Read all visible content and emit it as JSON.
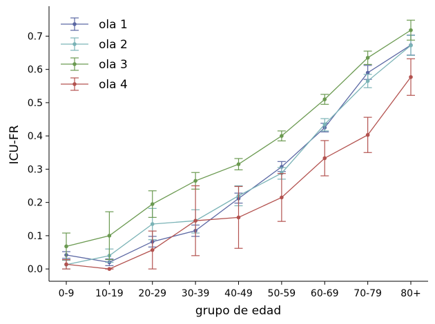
{
  "chart_data": {
    "type": "line",
    "xlabel": "grupo de edad",
    "ylabel": "ICU-FR",
    "categories": [
      "0-9",
      "10-19",
      "20-29",
      "30-39",
      "40-49",
      "50-59",
      "60-69",
      "70-79",
      "80+"
    ],
    "ylim": [
      -0.037,
      0.79
    ],
    "yticks": [
      "0.0",
      "0.1",
      "0.2",
      "0.3",
      "0.4",
      "0.5",
      "0.6",
      "0.7"
    ],
    "grid": false,
    "legend_position": "top-left",
    "series": [
      {
        "name": "ola 1",
        "color": "#5b67a3",
        "values": [
          0.042,
          0.02,
          0.082,
          0.115,
          0.212,
          0.307,
          0.425,
          0.59,
          0.673
        ],
        "err_low": [
          0.032,
          0.01,
          0.066,
          0.098,
          0.198,
          0.293,
          0.412,
          0.57,
          0.643
        ],
        "err_high": [
          0.052,
          0.03,
          0.098,
          0.132,
          0.228,
          0.323,
          0.438,
          0.612,
          0.703
        ]
      },
      {
        "name": "ola 2",
        "color": "#7ab3b6",
        "values": [
          0.013,
          0.04,
          0.135,
          0.145,
          0.22,
          0.288,
          0.435,
          0.565,
          0.672
        ],
        "err_low": [
          0.0,
          0.02,
          0.088,
          0.108,
          0.19,
          0.27,
          0.415,
          0.545,
          0.642
        ],
        "err_high": [
          0.026,
          0.06,
          0.182,
          0.178,
          0.25,
          0.305,
          0.452,
          0.585,
          0.702
        ]
      },
      {
        "name": "ola 3",
        "color": "#6b9a51",
        "values": [
          0.068,
          0.1,
          0.195,
          0.265,
          0.315,
          0.4,
          0.51,
          0.635,
          0.718
        ],
        "err_low": [
          0.028,
          0.028,
          0.155,
          0.24,
          0.298,
          0.385,
          0.495,
          0.615,
          0.688
        ],
        "err_high": [
          0.108,
          0.172,
          0.235,
          0.29,
          0.332,
          0.415,
          0.525,
          0.655,
          0.748
        ]
      },
      {
        "name": "ola 4",
        "color": "#b3524f",
        "values": [
          0.014,
          0.0,
          0.057,
          0.145,
          0.155,
          0.215,
          0.333,
          0.403,
          0.577
        ],
        "err_low": [
          0.0,
          0.0,
          0.0,
          0.04,
          0.062,
          0.143,
          0.28,
          0.35,
          0.522
        ],
        "err_high": [
          0.028,
          0.0,
          0.114,
          0.25,
          0.248,
          0.287,
          0.386,
          0.456,
          0.632
        ]
      }
    ]
  }
}
